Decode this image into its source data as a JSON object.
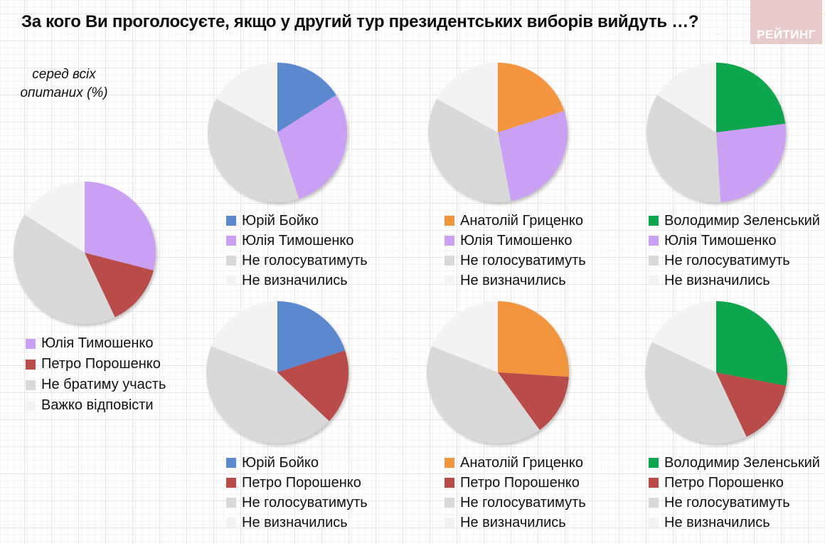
{
  "title": "За кого Ви проголосуєте, якщо у другий тур президентських виборів вийдуть …?",
  "logo": {
    "text": "РЕЙТИНГ",
    "bg": "#e9caca",
    "text_color": "#ffffff"
  },
  "note": {
    "line1": "серед всіх",
    "line2": "опитаних (%)"
  },
  "palette": {
    "boyko_blue": "#5b88ce",
    "tymoshenko_purple": "#c9a0f3",
    "grytsenko_orange": "#f3943e",
    "zelensky_green": "#0da64c",
    "poroshenko_red": "#b94b48",
    "not_vote_gray": "#d9d9d9",
    "undecided_light": "#f3f3f3"
  },
  "chart_data": [
    {
      "id": "all-respondents",
      "type": "pie",
      "slices": [
        {
          "label": "Юлія Тимошенко",
          "value": 29,
          "color": "#c9a0f3"
        },
        {
          "label": "Петро Порошенко",
          "value": 14,
          "color": "#b94b48"
        },
        {
          "label": "Не братиму участь",
          "value": 41,
          "color": "#d9d9d9"
        },
        {
          "label": "Важко відповісти",
          "value": 16,
          "color": "#f3f3f3"
        }
      ]
    },
    {
      "id": "boyko-tymoshenko",
      "type": "pie",
      "slices": [
        {
          "label": "Юрій Бойко",
          "value": 16,
          "color": "#5b88ce"
        },
        {
          "label": "Юлія Тимошенко",
          "value": 29,
          "color": "#c9a0f3"
        },
        {
          "label": "Не голосуватимуть",
          "value": 38,
          "color": "#d9d9d9"
        },
        {
          "label": "Не визначились",
          "value": 17,
          "color": "#f3f3f3"
        }
      ]
    },
    {
      "id": "grytsenko-tymoshenko",
      "type": "pie",
      "slices": [
        {
          "label": "Анатолій Гриценко",
          "value": 20,
          "color": "#f3943e"
        },
        {
          "label": "Юлія Тимошенко",
          "value": 27,
          "color": "#c9a0f3"
        },
        {
          "label": "Не голосуватимуть",
          "value": 36,
          "color": "#d9d9d9"
        },
        {
          "label": "Не визначились",
          "value": 17,
          "color": "#f3f3f3"
        }
      ]
    },
    {
      "id": "zelensky-tymoshenko",
      "type": "pie",
      "slices": [
        {
          "label": "Володимир Зеленський",
          "value": 23,
          "color": "#0da64c"
        },
        {
          "label": "Юлія Тимошенко",
          "value": 26,
          "color": "#c9a0f3"
        },
        {
          "label": "Не голосуватимуть",
          "value": 35,
          "color": "#d9d9d9"
        },
        {
          "label": "Не визначились",
          "value": 16,
          "color": "#f3f3f3"
        }
      ]
    },
    {
      "id": "boyko-poroshenko",
      "type": "pie",
      "slices": [
        {
          "label": "Юрій Бойко",
          "value": 20,
          "color": "#5b88ce"
        },
        {
          "label": "Петро Порошенко",
          "value": 17,
          "color": "#b94b48"
        },
        {
          "label": "Не голосуватимуть",
          "value": 44,
          "color": "#d9d9d9"
        },
        {
          "label": "Не визначились",
          "value": 19,
          "color": "#f3f3f3"
        }
      ]
    },
    {
      "id": "grytsenko-poroshenko",
      "type": "pie",
      "slices": [
        {
          "label": "Анатолій Гриценко",
          "value": 26,
          "color": "#f3943e"
        },
        {
          "label": "Петро Порошенко",
          "value": 14,
          "color": "#b94b48"
        },
        {
          "label": "Не голосуватимуть",
          "value": 41,
          "color": "#d9d9d9"
        },
        {
          "label": "Не визначились",
          "value": 19,
          "color": "#f3f3f3"
        }
      ]
    },
    {
      "id": "zelensky-poroshenko",
      "type": "pie",
      "slices": [
        {
          "label": "Володимир Зеленський",
          "value": 28,
          "color": "#0da64c"
        },
        {
          "label": "Петро Порошенко",
          "value": 15,
          "color": "#b94b48"
        },
        {
          "label": "Не голосуватимуть",
          "value": 39,
          "color": "#d9d9d9"
        },
        {
          "label": "Не визначились",
          "value": 18,
          "color": "#f3f3f3"
        }
      ]
    }
  ]
}
